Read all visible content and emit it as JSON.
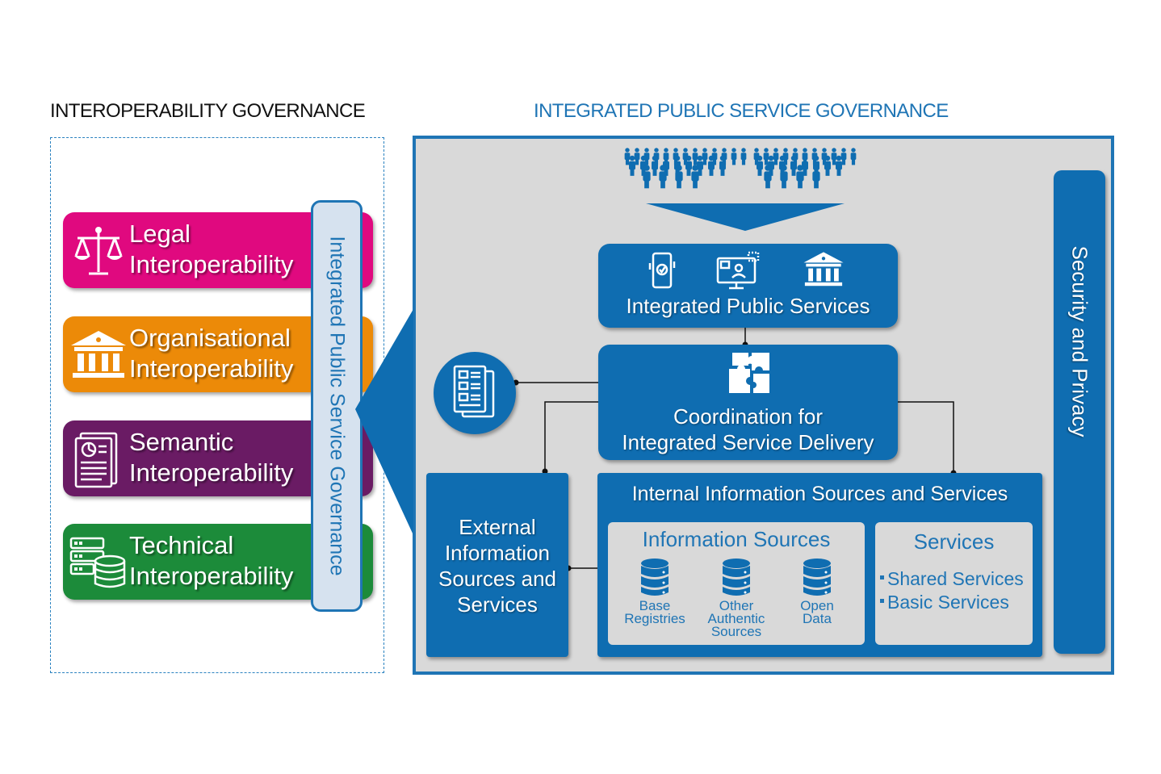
{
  "titles": {
    "left": "INTEROPERABILITY GOVERNANCE",
    "right": "INTEGRATED PUBLIC SERVICE GOVERNANCE"
  },
  "layers": {
    "legal": {
      "line1": "Legal",
      "line2": "Interoperability",
      "color": "#e0097f",
      "icon": "scales-icon"
    },
    "organisational": {
      "line1": "Organisational",
      "line2": "Interoperability",
      "color": "#ec8a08",
      "icon": "building-icon"
    },
    "semantic": {
      "line1": "Semantic",
      "line2": "Interoperability",
      "color": "#6a1b64",
      "icon": "document-chart-icon"
    },
    "technical": {
      "line1": "Technical",
      "line2": "Interoperability",
      "color": "#1c8b3a",
      "icon": "server-database-icon"
    }
  },
  "ips_governance_bar": "Integrated Public Service Governance",
  "integrated_public_services": {
    "label": "Integrated Public Services",
    "icons": [
      "mobile-phone-icon",
      "computer-user-icon",
      "building-icon"
    ]
  },
  "coordination": {
    "line1": "Coordination for",
    "line2": "Integrated Service Delivery",
    "icon": "puzzle-icon"
  },
  "catalogue_icon": "catalogue-icon",
  "external": {
    "lines": [
      "External",
      "Information",
      "Sources and",
      "Services"
    ]
  },
  "internal": {
    "title": "Internal Information Sources and Services",
    "information_sources": {
      "title": "Information Sources",
      "items": [
        {
          "line1": "Base",
          "line2": "Registries",
          "line3": ""
        },
        {
          "line1": "Other",
          "line2": "Authentic",
          "line3": "Sources"
        },
        {
          "line1": "Open",
          "line2": "Data",
          "line3": ""
        }
      ]
    },
    "services": {
      "title": "Services",
      "items": [
        "Shared Services",
        "Basic Services"
      ]
    }
  },
  "security": "Security and Privacy",
  "colors": {
    "primary_blue": "#0f6db1",
    "accent_blue": "#1f75b5",
    "panel_grey": "#d9d9d9"
  }
}
